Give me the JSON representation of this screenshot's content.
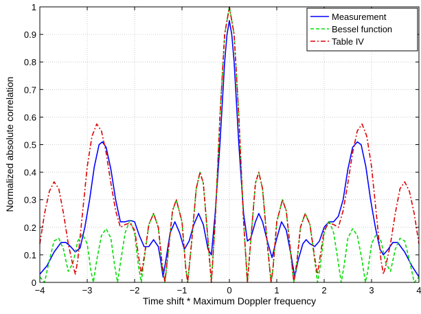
{
  "chart_data": {
    "type": "line",
    "title": "",
    "xlabel": "Time shift * Maximum Doppler frequency",
    "ylabel": "Normalized absolute correlation",
    "xlim": [
      -4,
      4
    ],
    "ylim": [
      0,
      1
    ],
    "xticks": [
      -4,
      -3,
      -2,
      -1,
      0,
      1,
      2,
      3,
      4
    ],
    "xtick_labels": [
      "−4",
      "−3",
      "−2",
      "−1",
      "0",
      "1",
      "2",
      "3",
      "4"
    ],
    "yticks": [
      0,
      0.1,
      0.2,
      0.3,
      0.4,
      0.5,
      0.6,
      0.7,
      0.8,
      0.9,
      1
    ],
    "ytick_labels": [
      "0",
      "0.1",
      "0.2",
      "0.3",
      "0.4",
      "0.5",
      "0.6",
      "0.7",
      "0.8",
      "0.9",
      "1"
    ],
    "grid": true,
    "legend_position": "top-right",
    "series": [
      {
        "name": "Measurement",
        "color": "#0000ff",
        "dash": "solid",
        "points": [
          [
            -4.0,
            0.03
          ],
          [
            -3.85,
            0.06
          ],
          [
            -3.7,
            0.11
          ],
          [
            -3.55,
            0.145
          ],
          [
            -3.45,
            0.145
          ],
          [
            -3.35,
            0.13
          ],
          [
            -3.25,
            0.11
          ],
          [
            -3.15,
            0.125
          ],
          [
            -3.05,
            0.2
          ],
          [
            -2.95,
            0.3
          ],
          [
            -2.85,
            0.42
          ],
          [
            -2.75,
            0.5
          ],
          [
            -2.68,
            0.51
          ],
          [
            -2.6,
            0.49
          ],
          [
            -2.5,
            0.41
          ],
          [
            -2.4,
            0.3
          ],
          [
            -2.3,
            0.22
          ],
          [
            -2.2,
            0.22
          ],
          [
            -2.1,
            0.225
          ],
          [
            -2.0,
            0.22
          ],
          [
            -1.9,
            0.17
          ],
          [
            -1.8,
            0.13
          ],
          [
            -1.7,
            0.13
          ],
          [
            -1.6,
            0.155
          ],
          [
            -1.5,
            0.13
          ],
          [
            -1.45,
            0.08
          ],
          [
            -1.4,
            0.02
          ],
          [
            -1.35,
            0.07
          ],
          [
            -1.25,
            0.18
          ],
          [
            -1.15,
            0.22
          ],
          [
            -1.05,
            0.18
          ],
          [
            -0.95,
            0.12
          ],
          [
            -0.85,
            0.15
          ],
          [
            -0.75,
            0.21
          ],
          [
            -0.65,
            0.25
          ],
          [
            -0.55,
            0.21
          ],
          [
            -0.45,
            0.12
          ],
          [
            -0.38,
            0.1
          ],
          [
            -0.3,
            0.25
          ],
          [
            -0.2,
            0.5
          ],
          [
            -0.1,
            0.8
          ],
          [
            -0.05,
            0.9
          ],
          [
            0.0,
            0.95
          ],
          [
            0.05,
            0.9
          ],
          [
            0.1,
            0.8
          ],
          [
            0.2,
            0.5
          ],
          [
            0.3,
            0.25
          ],
          [
            0.38,
            0.15
          ],
          [
            0.45,
            0.16
          ],
          [
            0.55,
            0.22
          ],
          [
            0.62,
            0.25
          ],
          [
            0.7,
            0.22
          ],
          [
            0.8,
            0.15
          ],
          [
            0.9,
            0.09
          ],
          [
            1.0,
            0.16
          ],
          [
            1.1,
            0.22
          ],
          [
            1.2,
            0.19
          ],
          [
            1.3,
            0.1
          ],
          [
            1.38,
            0.02
          ],
          [
            1.45,
            0.08
          ],
          [
            1.55,
            0.14
          ],
          [
            1.62,
            0.155
          ],
          [
            1.7,
            0.14
          ],
          [
            1.8,
            0.13
          ],
          [
            1.9,
            0.15
          ],
          [
            2.0,
            0.2
          ],
          [
            2.1,
            0.22
          ],
          [
            2.2,
            0.22
          ],
          [
            2.3,
            0.24
          ],
          [
            2.4,
            0.3
          ],
          [
            2.5,
            0.41
          ],
          [
            2.6,
            0.49
          ],
          [
            2.7,
            0.51
          ],
          [
            2.78,
            0.5
          ],
          [
            2.88,
            0.42
          ],
          [
            2.98,
            0.3
          ],
          [
            3.08,
            0.2
          ],
          [
            3.18,
            0.12
          ],
          [
            3.25,
            0.1
          ],
          [
            3.35,
            0.12
          ],
          [
            3.45,
            0.145
          ],
          [
            3.55,
            0.145
          ],
          [
            3.7,
            0.11
          ],
          [
            3.85,
            0.06
          ],
          [
            4.0,
            0.02
          ]
        ]
      },
      {
        "name": "Bessel function",
        "color": "#00dd00",
        "dash": "dashed",
        "points": [
          [
            -4.0,
            0.02
          ],
          [
            -3.9,
            0.0
          ],
          [
            -3.8,
            0.08
          ],
          [
            -3.7,
            0.15
          ],
          [
            -3.6,
            0.16
          ],
          [
            -3.5,
            0.12
          ],
          [
            -3.4,
            0.04
          ],
          [
            -3.3,
            0.07
          ],
          [
            -3.2,
            0.15
          ],
          [
            -3.1,
            0.175
          ],
          [
            -3.0,
            0.14
          ],
          [
            -2.92,
            0.04
          ],
          [
            -2.87,
            0.0
          ],
          [
            -2.8,
            0.08
          ],
          [
            -2.7,
            0.17
          ],
          [
            -2.6,
            0.195
          ],
          [
            -2.5,
            0.16
          ],
          [
            -2.42,
            0.06
          ],
          [
            -2.36,
            0.0
          ],
          [
            -2.3,
            0.07
          ],
          [
            -2.2,
            0.18
          ],
          [
            -2.1,
            0.225
          ],
          [
            -2.0,
            0.18
          ],
          [
            -1.92,
            0.06
          ],
          [
            -1.86,
            0.0
          ],
          [
            -1.8,
            0.08
          ],
          [
            -1.7,
            0.21
          ],
          [
            -1.6,
            0.25
          ],
          [
            -1.5,
            0.2
          ],
          [
            -1.42,
            0.06
          ],
          [
            -1.36,
            0.0
          ],
          [
            -1.3,
            0.09
          ],
          [
            -1.2,
            0.26
          ],
          [
            -1.12,
            0.3
          ],
          [
            -1.0,
            0.22
          ],
          [
            -0.92,
            0.05
          ],
          [
            -0.88,
            0.0
          ],
          [
            -0.8,
            0.14
          ],
          [
            -0.7,
            0.34
          ],
          [
            -0.62,
            0.4
          ],
          [
            -0.55,
            0.36
          ],
          [
            -0.45,
            0.15
          ],
          [
            -0.38,
            0.0
          ],
          [
            -0.3,
            0.22
          ],
          [
            -0.2,
            0.6
          ],
          [
            -0.1,
            0.9
          ],
          [
            0.0,
            1.0
          ],
          [
            0.1,
            0.9
          ],
          [
            0.2,
            0.6
          ],
          [
            0.3,
            0.22
          ],
          [
            0.38,
            0.0
          ],
          [
            0.45,
            0.15
          ],
          [
            0.55,
            0.36
          ],
          [
            0.62,
            0.4
          ],
          [
            0.7,
            0.34
          ],
          [
            0.8,
            0.14
          ],
          [
            0.88,
            0.0
          ],
          [
            0.92,
            0.05
          ],
          [
            1.0,
            0.22
          ],
          [
            1.12,
            0.3
          ],
          [
            1.2,
            0.26
          ],
          [
            1.3,
            0.09
          ],
          [
            1.36,
            0.0
          ],
          [
            1.42,
            0.06
          ],
          [
            1.5,
            0.2
          ],
          [
            1.6,
            0.25
          ],
          [
            1.7,
            0.21
          ],
          [
            1.8,
            0.08
          ],
          [
            1.86,
            0.0
          ],
          [
            1.92,
            0.06
          ],
          [
            2.0,
            0.18
          ],
          [
            2.1,
            0.225
          ],
          [
            2.2,
            0.18
          ],
          [
            2.3,
            0.07
          ],
          [
            2.36,
            0.0
          ],
          [
            2.42,
            0.06
          ],
          [
            2.5,
            0.16
          ],
          [
            2.6,
            0.195
          ],
          [
            2.7,
            0.17
          ],
          [
            2.8,
            0.08
          ],
          [
            2.87,
            0.0
          ],
          [
            2.92,
            0.04
          ],
          [
            3.0,
            0.14
          ],
          [
            3.1,
            0.175
          ],
          [
            3.2,
            0.15
          ],
          [
            3.3,
            0.07
          ],
          [
            3.4,
            0.04
          ],
          [
            3.5,
            0.12
          ],
          [
            3.6,
            0.16
          ],
          [
            3.7,
            0.15
          ],
          [
            3.8,
            0.08
          ],
          [
            3.9,
            0.0
          ],
          [
            4.0,
            0.02
          ]
        ]
      },
      {
        "name": "Table IV",
        "color": "#dd0000",
        "dash": "dashdot",
        "points": [
          [
            -4.0,
            0.14
          ],
          [
            -3.9,
            0.25
          ],
          [
            -3.8,
            0.33
          ],
          [
            -3.7,
            0.365
          ],
          [
            -3.6,
            0.34
          ],
          [
            -3.5,
            0.25
          ],
          [
            -3.4,
            0.14
          ],
          [
            -3.3,
            0.06
          ],
          [
            -3.25,
            0.03
          ],
          [
            -3.2,
            0.08
          ],
          [
            -3.1,
            0.25
          ],
          [
            -3.0,
            0.42
          ],
          [
            -2.9,
            0.53
          ],
          [
            -2.8,
            0.575
          ],
          [
            -2.7,
            0.55
          ],
          [
            -2.6,
            0.47
          ],
          [
            -2.5,
            0.36
          ],
          [
            -2.4,
            0.26
          ],
          [
            -2.3,
            0.2
          ],
          [
            -2.2,
            0.21
          ],
          [
            -2.1,
            0.215
          ],
          [
            -2.0,
            0.19
          ],
          [
            -1.92,
            0.1
          ],
          [
            -1.86,
            0.03
          ],
          [
            -1.8,
            0.09
          ],
          [
            -1.7,
            0.21
          ],
          [
            -1.6,
            0.25
          ],
          [
            -1.5,
            0.2
          ],
          [
            -1.42,
            0.07
          ],
          [
            -1.36,
            0.0
          ],
          [
            -1.3,
            0.1
          ],
          [
            -1.2,
            0.26
          ],
          [
            -1.12,
            0.3
          ],
          [
            -1.0,
            0.22
          ],
          [
            -0.92,
            0.05
          ],
          [
            -0.88,
            0.0
          ],
          [
            -0.8,
            0.14
          ],
          [
            -0.7,
            0.34
          ],
          [
            -0.62,
            0.4
          ],
          [
            -0.55,
            0.36
          ],
          [
            -0.45,
            0.15
          ],
          [
            -0.38,
            0.0
          ],
          [
            -0.3,
            0.22
          ],
          [
            -0.2,
            0.6
          ],
          [
            -0.1,
            0.9
          ],
          [
            0.0,
            1.0
          ],
          [
            0.1,
            0.9
          ],
          [
            0.2,
            0.6
          ],
          [
            0.3,
            0.22
          ],
          [
            0.38,
            0.0
          ],
          [
            0.45,
            0.15
          ],
          [
            0.55,
            0.36
          ],
          [
            0.62,
            0.4
          ],
          [
            0.7,
            0.34
          ],
          [
            0.8,
            0.14
          ],
          [
            0.88,
            0.0
          ],
          [
            0.92,
            0.05
          ],
          [
            1.0,
            0.22
          ],
          [
            1.12,
            0.3
          ],
          [
            1.2,
            0.26
          ],
          [
            1.3,
            0.1
          ],
          [
            1.36,
            0.0
          ],
          [
            1.42,
            0.07
          ],
          [
            1.5,
            0.2
          ],
          [
            1.6,
            0.25
          ],
          [
            1.7,
            0.21
          ],
          [
            1.8,
            0.09
          ],
          [
            1.86,
            0.03
          ],
          [
            1.92,
            0.1
          ],
          [
            2.0,
            0.19
          ],
          [
            2.1,
            0.215
          ],
          [
            2.2,
            0.21
          ],
          [
            2.3,
            0.2
          ],
          [
            2.4,
            0.26
          ],
          [
            2.5,
            0.36
          ],
          [
            2.6,
            0.47
          ],
          [
            2.7,
            0.55
          ],
          [
            2.8,
            0.575
          ],
          [
            2.9,
            0.53
          ],
          [
            3.0,
            0.42
          ],
          [
            3.1,
            0.25
          ],
          [
            3.2,
            0.08
          ],
          [
            3.25,
            0.03
          ],
          [
            3.3,
            0.06
          ],
          [
            3.4,
            0.14
          ],
          [
            3.5,
            0.25
          ],
          [
            3.6,
            0.34
          ],
          [
            3.7,
            0.365
          ],
          [
            3.8,
            0.33
          ],
          [
            3.9,
            0.25
          ],
          [
            4.0,
            0.14
          ]
        ]
      }
    ]
  }
}
